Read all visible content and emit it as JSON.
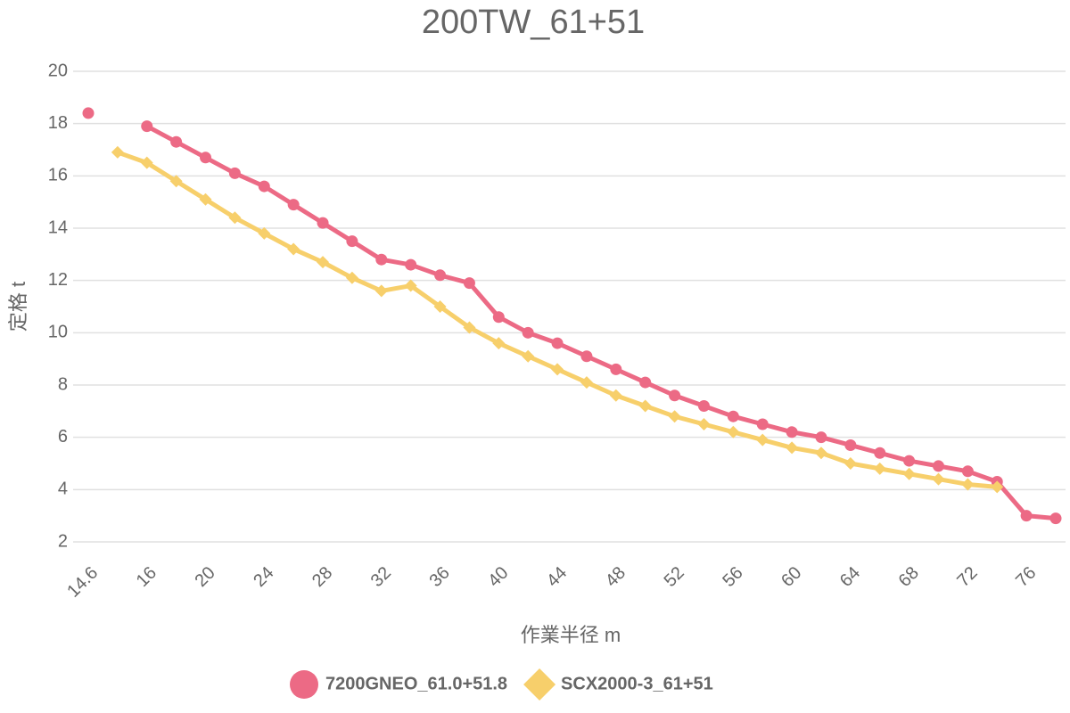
{
  "chart_data": {
    "type": "line",
    "title": "200TW_61+51",
    "x_label": "作業半径 m",
    "y_label": "定格 t",
    "categories": [
      "14.6",
      null,
      "16",
      null,
      "20",
      null,
      "24",
      null,
      "28",
      null,
      "32",
      null,
      "36",
      null,
      "40",
      null,
      "44",
      null,
      "48",
      null,
      "52",
      null,
      "56",
      null,
      "60",
      null,
      "64",
      null,
      "68",
      null,
      "72",
      null,
      "76",
      null
    ],
    "series": [
      {
        "name": "7200GNEO_61.0+51.8",
        "color": "#ec6a85",
        "marker": "circle",
        "values": [
          18.4,
          null,
          17.9,
          17.3,
          16.7,
          16.1,
          15.6,
          14.9,
          14.2,
          13.5,
          12.8,
          12.6,
          12.2,
          11.9,
          10.6,
          10.0,
          9.6,
          9.1,
          8.6,
          8.1,
          7.6,
          7.2,
          6.8,
          6.5,
          6.2,
          6.0,
          5.7,
          5.4,
          5.1,
          4.9,
          4.7,
          4.3,
          3.0,
          2.9
        ]
      },
      {
        "name": "SCX2000-3_61+51",
        "color": "#f7cf6b",
        "marker": "diamond",
        "values": [
          null,
          16.9,
          16.5,
          15.8,
          15.1,
          14.4,
          13.8,
          13.2,
          12.7,
          12.1,
          11.6,
          11.8,
          11.0,
          10.2,
          9.6,
          9.1,
          8.6,
          8.1,
          7.6,
          7.2,
          6.8,
          6.5,
          6.2,
          5.9,
          5.6,
          5.4,
          5.0,
          4.8,
          4.6,
          4.4,
          4.2,
          4.1,
          null,
          null
        ]
      }
    ],
    "ylim": [
      2,
      20
    ],
    "yticks": [
      2,
      4,
      6,
      8,
      10,
      12,
      14,
      16,
      18,
      20
    ],
    "grid": true,
    "legend": "bottom"
  }
}
